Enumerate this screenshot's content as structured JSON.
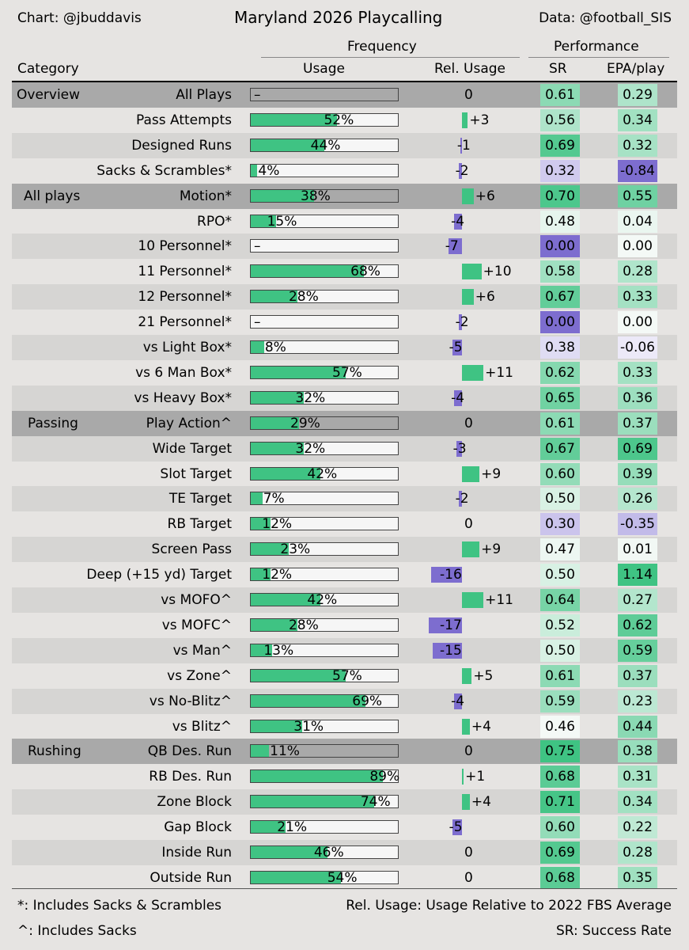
{
  "header": {
    "credit_left": "Chart: @jbuddavis",
    "title": "Maryland 2026 Playcalling",
    "credit_right": "Data: @football_SIS",
    "group_frequency": "Frequency",
    "group_performance": "Performance",
    "col_category": "Category",
    "col_usage": "Usage",
    "col_rel_usage": "Rel. Usage",
    "col_sr": "SR",
    "col_epa": "EPA/play"
  },
  "footer": {
    "note_sacks_scrambles": "*: Includes Sacks & Scrambles",
    "note_sacks": "^: Includes Sacks",
    "note_rel_usage": "Rel. Usage: Usage Relative to 2022 FBS Average",
    "note_sr": "SR: Success Rate"
  },
  "colors": {
    "positive": "#3fc383",
    "negative": "#7d6dcf",
    "row_alt": "#d6d5d3",
    "row_section": "#a9a9a9",
    "background": "#e6e4e2"
  },
  "chart_data": {
    "type": "table",
    "title": "Maryland 2026 Playcalling",
    "columns": [
      "Category",
      "Usage",
      "Rel. Usage",
      "SR",
      "EPA/play"
    ],
    "rows": [
      {
        "section": "Overview",
        "label": "All Plays",
        "usage": null,
        "usage_text": "–",
        "rel": 0,
        "rel_text": "0",
        "sr": "0.61",
        "epa": "0.29"
      },
      {
        "section": "",
        "label": "Pass Attempts",
        "usage": 52,
        "usage_text": "52%",
        "rel": 3,
        "rel_text": "+3",
        "sr": "0.56",
        "epa": "0.34"
      },
      {
        "section": "",
        "label": "Designed Runs",
        "usage": 44,
        "usage_text": "44%",
        "rel": -1,
        "rel_text": "-1",
        "sr": "0.69",
        "epa": "0.32"
      },
      {
        "section": "",
        "label": "Sacks & Scrambles*",
        "usage": 4,
        "usage_text": "4%",
        "rel": -2,
        "rel_text": "-2",
        "sr": "0.32",
        "epa": "-0.84"
      },
      {
        "section": "All plays",
        "label": "Motion*",
        "usage": 38,
        "usage_text": "38%",
        "rel": 6,
        "rel_text": "+6",
        "sr": "0.70",
        "epa": "0.55"
      },
      {
        "section": "",
        "label": "RPO*",
        "usage": 15,
        "usage_text": "15%",
        "rel": -4,
        "rel_text": "-4",
        "sr": "0.48",
        "epa": "0.04"
      },
      {
        "section": "",
        "label": "10 Personnel*",
        "usage": null,
        "usage_text": "–",
        "rel": -7,
        "rel_text": "-7",
        "sr": "0.00",
        "epa": "0.00"
      },
      {
        "section": "",
        "label": "11 Personnel*",
        "usage": 68,
        "usage_text": "68%",
        "rel": 10,
        "rel_text": "+10",
        "sr": "0.58",
        "epa": "0.28"
      },
      {
        "section": "",
        "label": "12 Personnel*",
        "usage": 28,
        "usage_text": "28%",
        "rel": 6,
        "rel_text": "+6",
        "sr": "0.67",
        "epa": "0.33"
      },
      {
        "section": "",
        "label": "21 Personnel*",
        "usage": null,
        "usage_text": "–",
        "rel": -2,
        "rel_text": "-2",
        "sr": "0.00",
        "epa": "0.00"
      },
      {
        "section": "",
        "label": "vs Light Box*",
        "usage": 8,
        "usage_text": "8%",
        "rel": -5,
        "rel_text": "-5",
        "sr": "0.38",
        "epa": "-0.06"
      },
      {
        "section": "",
        "label": "vs 6 Man Box*",
        "usage": 57,
        "usage_text": "57%",
        "rel": 11,
        "rel_text": "+11",
        "sr": "0.62",
        "epa": "0.33"
      },
      {
        "section": "",
        "label": "vs Heavy Box*",
        "usage": 32,
        "usage_text": "32%",
        "rel": -4,
        "rel_text": "-4",
        "sr": "0.65",
        "epa": "0.36"
      },
      {
        "section": "Passing",
        "label": "Play Action^",
        "usage": 29,
        "usage_text": "29%",
        "rel": 0,
        "rel_text": "0",
        "sr": "0.61",
        "epa": "0.37"
      },
      {
        "section": "",
        "label": "Wide Target",
        "usage": 32,
        "usage_text": "32%",
        "rel": -3,
        "rel_text": "-3",
        "sr": "0.67",
        "epa": "0.69"
      },
      {
        "section": "",
        "label": "Slot Target",
        "usage": 42,
        "usage_text": "42%",
        "rel": 9,
        "rel_text": "+9",
        "sr": "0.60",
        "epa": "0.39"
      },
      {
        "section": "",
        "label": "TE Target",
        "usage": 7,
        "usage_text": "7%",
        "rel": -2,
        "rel_text": "-2",
        "sr": "0.50",
        "epa": "0.26"
      },
      {
        "section": "",
        "label": "RB Target",
        "usage": 12,
        "usage_text": "12%",
        "rel": 0,
        "rel_text": "0",
        "sr": "0.30",
        "epa": "-0.35"
      },
      {
        "section": "",
        "label": "Screen Pass",
        "usage": 23,
        "usage_text": "23%",
        "rel": 9,
        "rel_text": "+9",
        "sr": "0.47",
        "epa": "0.01"
      },
      {
        "section": "",
        "label": "Deep (+15 yd) Target",
        "usage": 12,
        "usage_text": "12%",
        "rel": -16,
        "rel_text": "-16",
        "sr": "0.50",
        "epa": "1.14"
      },
      {
        "section": "",
        "label": "vs MOFO^",
        "usage": 42,
        "usage_text": "42%",
        "rel": 11,
        "rel_text": "+11",
        "sr": "0.64",
        "epa": "0.27"
      },
      {
        "section": "",
        "label": "vs MOFC^",
        "usage": 28,
        "usage_text": "28%",
        "rel": -17,
        "rel_text": "-17",
        "sr": "0.52",
        "epa": "0.62"
      },
      {
        "section": "",
        "label": "vs Man^",
        "usage": 13,
        "usage_text": "13%",
        "rel": -15,
        "rel_text": "-15",
        "sr": "0.50",
        "epa": "0.59"
      },
      {
        "section": "",
        "label": "vs Zone^",
        "usage": 57,
        "usage_text": "57%",
        "rel": 5,
        "rel_text": "+5",
        "sr": "0.61",
        "epa": "0.37"
      },
      {
        "section": "",
        "label": "vs No-Blitz^",
        "usage": 69,
        "usage_text": "69%",
        "rel": -4,
        "rel_text": "-4",
        "sr": "0.59",
        "epa": "0.23"
      },
      {
        "section": "",
        "label": "vs Blitz^",
        "usage": 31,
        "usage_text": "31%",
        "rel": 4,
        "rel_text": "+4",
        "sr": "0.46",
        "epa": "0.44"
      },
      {
        "section": "Rushing",
        "label": "QB Des. Run",
        "usage": 11,
        "usage_text": "11%",
        "rel": 0,
        "rel_text": "0",
        "sr": "0.75",
        "epa": "0.38"
      },
      {
        "section": "",
        "label": "RB Des. Run",
        "usage": 89,
        "usage_text": "89%",
        "rel": 1,
        "rel_text": "+1",
        "sr": "0.68",
        "epa": "0.31"
      },
      {
        "section": "",
        "label": "Zone Block",
        "usage": 74,
        "usage_text": "74%",
        "rel": 4,
        "rel_text": "+4",
        "sr": "0.71",
        "epa": "0.34"
      },
      {
        "section": "",
        "label": "Gap Block",
        "usage": 21,
        "usage_text": "21%",
        "rel": -5,
        "rel_text": "-5",
        "sr": "0.60",
        "epa": "0.22"
      },
      {
        "section": "",
        "label": "Inside Run",
        "usage": 46,
        "usage_text": "46%",
        "rel": 0,
        "rel_text": "0",
        "sr": "0.69",
        "epa": "0.28"
      },
      {
        "section": "",
        "label": "Outside Run",
        "usage": 54,
        "usage_text": "54%",
        "rel": 0,
        "rel_text": "0",
        "sr": "0.68",
        "epa": "0.35"
      }
    ]
  }
}
